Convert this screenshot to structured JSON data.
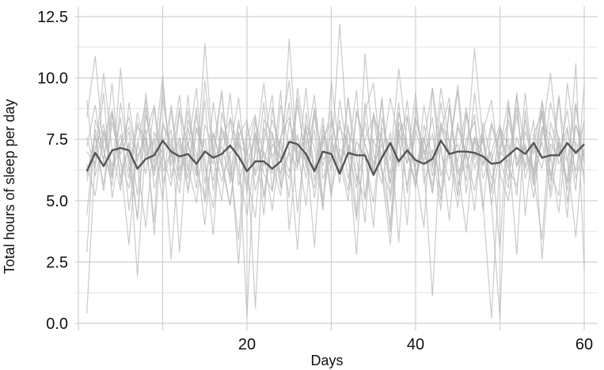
{
  "chart_data": {
    "type": "line",
    "title": "",
    "xlabel": "Days",
    "ylabel": "Total hours of sleep per day",
    "xlim": [
      0,
      61
    ],
    "ylim": [
      0,
      12.5
    ],
    "x_ticks": [
      20,
      40,
      60
    ],
    "x_tick_labels": [
      "20",
      "40",
      "60"
    ],
    "y_ticks": [
      0,
      2.5,
      5,
      7.5,
      10,
      12.5
    ],
    "y_tick_labels": [
      "0.0",
      "2.5",
      "5.0",
      "7.5",
      "10.0",
      "12.5"
    ],
    "grid": true,
    "legend": "none",
    "x": [
      1,
      2,
      3,
      4,
      5,
      6,
      7,
      8,
      9,
      10,
      11,
      12,
      13,
      14,
      15,
      16,
      17,
      18,
      19,
      20,
      21,
      22,
      23,
      24,
      25,
      26,
      27,
      28,
      29,
      30,
      31,
      32,
      33,
      34,
      35,
      36,
      37,
      38,
      39,
      40,
      41,
      42,
      43,
      44,
      45,
      46,
      47,
      48,
      49,
      50,
      51,
      52,
      53,
      54,
      55,
      56,
      57,
      58,
      59,
      60
    ],
    "series": [
      {
        "role": "mean",
        "values": [
          6.2,
          6.95,
          6.4,
          7.05,
          7.15,
          7.05,
          6.3,
          6.7,
          6.85,
          7.45,
          7.0,
          6.8,
          6.9,
          6.5,
          7.0,
          6.75,
          6.9,
          7.25,
          6.8,
          6.2,
          6.6,
          6.6,
          6.3,
          6.6,
          7.4,
          7.3,
          6.9,
          6.2,
          7.0,
          6.9,
          6.1,
          6.95,
          6.85,
          6.85,
          6.05,
          6.75,
          7.35,
          6.6,
          7.05,
          6.65,
          6.5,
          6.7,
          7.45,
          6.9,
          7.0,
          7.0,
          6.95,
          6.8,
          6.5,
          6.55,
          6.85,
          7.15,
          6.9,
          7.35,
          6.75,
          6.85,
          6.85,
          7.35,
          6.95,
          7.3
        ]
      },
      {
        "role": "individual",
        "values": [
          7.2,
          8.9,
          6.5,
          9.8,
          5.6,
          7.4,
          4.2,
          8.5,
          6.8,
          10.1,
          5.9,
          7.6,
          6.2,
          8.8,
          4.9,
          7.1,
          9.4,
          6.0,
          7.8,
          5.3,
          8.2,
          6.9,
          4.6,
          7.5,
          9.9,
          6.4,
          8.0,
          5.1,
          7.3,
          8.7,
          6.1,
          9.2,
          5.8,
          7.0,
          3.9,
          8.4,
          6.6,
          10.4,
          7.2,
          5.5,
          8.1,
          6.3,
          9.6,
          7.4,
          5.2,
          8.6,
          6.8,
          7.9,
          4.8,
          7.1,
          9.1,
          6.4,
          8.3,
          5.7,
          7.6,
          10.2,
          6.9,
          8.0,
          5.4,
          9.7
        ]
      },
      {
        "role": "individual",
        "values": [
          0.4,
          6.8,
          10.2,
          7.1,
          5.4,
          9.0,
          6.6,
          7.9,
          3.6,
          8.2,
          7.4,
          5.8,
          9.3,
          6.1,
          11.4,
          6.9,
          5.0,
          8.4,
          7.2,
          0.3,
          7.6,
          4.4,
          8.8,
          6.7,
          5.9,
          9.6,
          7.3,
          3.1,
          8.1,
          6.5,
          12.2,
          7.0,
          2.8,
          8.6,
          9.8,
          6.2,
          5.3,
          7.7,
          4.0,
          8.9,
          6.4,
          1.1,
          7.8,
          9.2,
          5.6,
          7.1,
          8.5,
          4.9,
          0.2,
          6.8,
          7.5,
          5.2,
          9.4,
          6.0,
          3.4,
          8.2,
          7.0,
          5.7,
          10.6,
          2.3
        ]
      },
      {
        "role": "individual",
        "values": [
          6.5,
          5.2,
          7.8,
          6.0,
          8.4,
          4.6,
          7.2,
          9.1,
          5.5,
          6.8,
          7.9,
          2.9,
          8.0,
          6.3,
          5.1,
          9.0,
          6.7,
          4.8,
          7.6,
          8.3,
          5.4,
          7.0,
          6.1,
          9.5,
          3.8,
          7.3,
          6.6,
          8.7,
          5.0,
          7.4,
          6.2,
          8.1,
          4.4,
          11.0,
          6.9,
          5.7,
          7.8,
          3.3,
          8.5,
          6.0,
          7.1,
          5.3,
          9.0,
          6.8,
          4.7,
          7.5,
          8.2,
          5.9,
          7.0,
          3.0,
          8.9,
          6.4,
          7.2,
          5.1,
          8.0,
          6.6,
          9.3,
          4.9,
          7.4,
          6.1
        ]
      },
      {
        "role": "individual",
        "values": [
          8.4,
          10.9,
          7.0,
          5.9,
          10.4,
          6.2,
          8.0,
          7.5,
          4.1,
          9.7,
          6.4,
          8.8,
          5.3,
          7.9,
          6.8,
          3.6,
          8.6,
          7.1,
          9.2,
          6.0,
          4.3,
          8.3,
          7.7,
          5.6,
          11.6,
          6.5,
          8.1,
          7.2,
          4.6,
          9.9,
          6.9,
          5.4,
          8.7,
          7.3,
          6.0,
          9.1,
          5.0,
          7.8,
          8.4,
          6.2,
          3.9,
          9.6,
          7.0,
          5.8,
          8.2,
          6.7,
          11.2,
          7.4,
          5.5,
          8.0,
          6.3,
          9.4,
          4.4,
          7.7,
          8.6,
          6.1,
          5.2,
          9.8,
          7.0,
          6.6
        ]
      },
      {
        "role": "individual",
        "values": [
          6.0,
          7.7,
          5.4,
          8.2,
          6.6,
          3.2,
          7.4,
          6.1,
          8.8,
          5.7,
          7.0,
          9.3,
          6.4,
          4.9,
          8.1,
          7.2,
          5.8,
          6.9,
          2.4,
          7.6,
          8.5,
          5.1,
          7.3,
          6.7,
          9.0,
          4.5,
          7.9,
          6.2,
          8.4,
          5.3,
          7.1,
          6.8,
          9.5,
          5.0,
          7.5,
          6.3,
          4.0,
          8.6,
          7.0,
          5.6,
          8.9,
          6.5,
          7.2,
          4.2,
          8.0,
          6.9,
          5.4,
          7.8,
          9.1,
          6.1,
          5.0,
          7.6,
          6.4,
          8.3,
          2.6,
          7.3,
          6.8,
          8.7,
          5.9,
          7.1
        ]
      },
      {
        "role": "individual",
        "values": [
          7.6,
          6.3,
          9.4,
          5.1,
          7.2,
          8.0,
          6.5,
          3.9,
          7.8,
          6.9,
          5.6,
          8.6,
          7.3,
          6.0,
          9.1,
          5.4,
          7.5,
          8.3,
          6.2,
          4.4,
          7.0,
          9.8,
          6.6,
          5.2,
          8.2,
          7.1,
          4.8,
          8.8,
          6.4,
          7.7,
          5.7,
          9.2,
          6.8,
          4.1,
          8.5,
          7.4,
          6.1,
          9.0,
          5.3,
          7.9,
          6.6,
          8.4,
          5.0,
          7.2,
          9.7,
          6.3,
          7.6,
          4.6,
          8.1,
          6.7,
          5.5,
          9.3,
          7.0,
          6.2,
          8.7,
          5.8,
          7.4,
          4.3,
          8.9,
          6.5
        ]
      },
      {
        "role": "individual",
        "values": [
          4.4,
          7.9,
          6.7,
          8.6,
          5.9,
          7.3,
          1.9,
          7.6,
          8.9,
          6.2,
          7.0,
          5.3,
          8.3,
          6.9,
          4.0,
          7.7,
          6.4,
          9.4,
          5.6,
          7.1,
          0.6,
          8.0,
          6.8,
          7.5,
          5.1,
          9.2,
          6.3,
          7.9,
          4.7,
          8.4,
          6.6,
          7.2,
          5.5,
          9.0,
          6.1,
          7.8,
          3.7,
          8.2,
          6.9,
          5.8,
          7.4,
          9.6,
          6.0,
          7.1,
          5.2,
          8.5,
          6.7,
          7.6,
          4.9,
          0.2,
          8.8,
          6.4,
          7.3,
          5.6,
          9.1,
          6.8,
          4.5,
          7.9,
          6.2,
          8.3
        ]
      },
      {
        "role": "individual",
        "values": [
          9.1,
          6.0,
          7.4,
          8.7,
          6.6,
          5.5,
          8.2,
          6.8,
          7.5,
          5.0,
          8.9,
          6.3,
          7.1,
          9.6,
          5.7,
          7.8,
          6.4,
          4.8,
          8.1,
          7.0,
          6.2,
          9.0,
          5.4,
          7.6,
          8.4,
          6.5,
          7.2,
          9.3,
          5.9,
          6.8,
          8.0,
          7.3,
          6.0,
          5.1,
          8.6,
          6.7,
          9.2,
          7.4,
          5.6,
          8.3,
          6.9,
          7.7,
          5.3,
          8.8,
          6.1,
          7.0,
          4.6,
          8.2,
          6.6,
          7.9,
          5.8,
          8.5,
          6.3,
          7.2,
          9.0,
          6.0,
          7.6,
          5.4,
          8.1,
          6.8
        ]
      },
      {
        "role": "individual",
        "values": [
          5.8,
          7.2,
          8.1,
          6.4,
          7.7,
          5.9,
          8.6,
          7.0,
          6.3,
          9.2,
          6.8,
          7.5,
          5.4,
          8.0,
          7.1,
          6.5,
          9.5,
          5.7,
          7.3,
          6.9,
          8.4,
          5.2,
          7.8,
          6.1,
          7.0,
          8.9,
          6.6,
          5.5,
          7.9,
          6.2,
          8.3,
          5.9,
          7.4,
          6.8,
          4.9,
          8.0,
          7.1,
          6.4,
          9.1,
          6.0,
          7.6,
          5.3,
          8.2,
          6.7,
          7.3,
          5.8,
          9.4,
          6.5,
          7.0,
          8.1,
          6.3,
          5.6,
          7.8,
          6.9,
          8.5,
          5.1,
          7.2,
          6.6,
          9.0,
          5.7
        ]
      },
      {
        "role": "individual",
        "values": [
          2.9,
          8.3,
          7.1,
          5.6,
          9.0,
          6.7,
          4.3,
          8.8,
          6.2,
          7.6,
          2.6,
          7.3,
          5.9,
          8.5,
          6.4,
          4.7,
          7.9,
          6.6,
          3.4,
          8.2,
          6.0,
          7.4,
          9.3,
          5.5,
          7.0,
          3.0,
          8.6,
          6.3,
          7.7,
          5.1,
          9.1,
          6.8,
          4.2,
          7.5,
          8.4,
          6.1,
          3.2,
          7.8,
          6.5,
          9.4,
          5.7,
          7.1,
          4.6,
          8.9,
          6.4,
          3.7,
          7.6,
          6.9,
          5.3,
          8.0,
          7.2,
          2.8,
          8.7,
          6.0,
          7.4,
          5.4,
          9.2,
          6.6,
          3.5,
          7.9
        ]
      },
      {
        "role": "individual",
        "values": [
          7.0,
          6.5,
          7.9,
          6.2,
          7.3,
          8.4,
          6.8,
          7.6,
          6.0,
          8.1,
          7.2,
          6.6,
          8.7,
          6.3,
          7.5,
          5.8,
          8.0,
          6.9,
          7.4,
          5.6,
          7.8,
          6.4,
          8.3,
          7.1,
          6.2,
          7.7,
          5.9,
          8.5,
          6.7,
          7.0,
          6.1,
          7.9,
          6.8,
          8.2,
          6.5,
          7.3,
          5.7,
          8.6,
          7.2,
          6.4,
          7.6,
          6.0,
          8.1,
          7.4,
          6.6,
          8.8,
          6.3,
          7.5,
          5.9,
          7.0,
          8.3,
          6.7,
          7.1,
          6.2,
          8.0,
          7.7,
          6.5,
          7.3,
          6.9,
          8.2
        ]
      },
      {
        "role": "individual",
        "values": [
          6.1,
          7.6,
          5.6,
          8.5,
          6.9,
          7.8,
          5.2,
          9.4,
          6.6,
          7.1,
          8.7,
          6.0,
          7.4,
          5.5,
          9.9,
          6.8,
          7.2,
          5.9,
          8.3,
          6.4,
          7.7,
          6.1,
          5.4,
          8.9,
          7.0,
          6.3,
          9.6,
          5.8,
          7.5,
          8.2,
          6.7,
          5.0,
          8.6,
          7.3,
          6.2,
          9.2,
          5.7,
          7.9,
          6.5,
          8.4,
          7.1,
          5.6,
          8.0,
          6.9,
          9.5,
          5.3,
          7.6,
          6.4,
          8.2,
          7.0,
          6.6,
          8.8,
          5.9,
          7.2,
          6.3,
          9.0,
          7.5,
          5.8,
          8.1,
          6.7
        ]
      }
    ]
  }
}
